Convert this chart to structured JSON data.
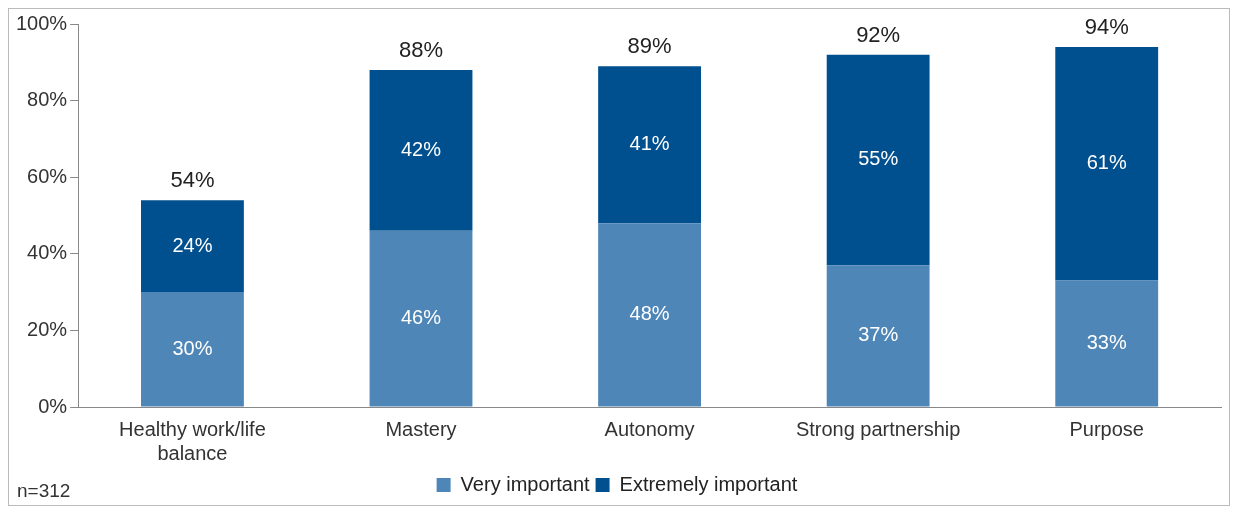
{
  "chart_data": {
    "type": "bar",
    "stacked": true,
    "categories": [
      "Healthy work/life balance",
      "Mastery",
      "Autonomy",
      "Strong partnership",
      "Purpose"
    ],
    "series": [
      {
        "name": "Very important",
        "color": "#4f86b8",
        "values": [
          30,
          46,
          48,
          37,
          33
        ],
        "value_labels": [
          "30%",
          "46%",
          "48%",
          "37%",
          "33%"
        ]
      },
      {
        "name": "Extremely important",
        "color": "#00508f",
        "values": [
          24,
          42,
          41,
          55,
          61
        ],
        "value_labels": [
          "24%",
          "42%",
          "41%",
          "55%",
          "61%"
        ]
      }
    ],
    "ylim": [
      0,
      100
    ],
    "yticks": [
      {
        "value": 0,
        "label": "0%"
      },
      {
        "value": 20,
        "label": "20%"
      },
      {
        "value": 40,
        "label": "40%"
      },
      {
        "value": 60,
        "label": "60%"
      },
      {
        "value": 80,
        "label": "80%"
      },
      {
        "value": 100,
        "label": "100%"
      }
    ],
    "totals": [
      "54%",
      "88%",
      "89%",
      "92%",
      "94%"
    ],
    "legend": "bottom",
    "grid": false,
    "annotations": [
      "n=312"
    ]
  }
}
